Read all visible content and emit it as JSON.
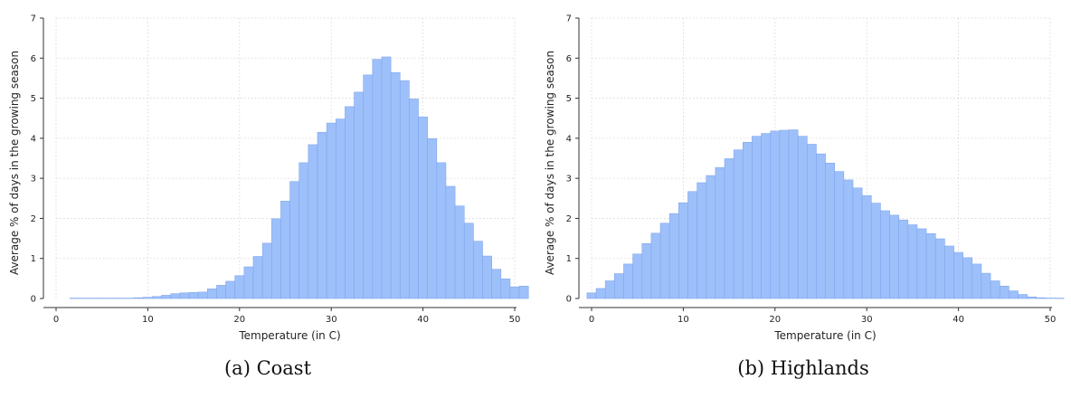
{
  "chart_data": [
    {
      "type": "bar",
      "caption": "(a) Coast",
      "xlabel": "Temperature (in C)",
      "ylabel": "Average % of days in the growing season",
      "xlim": [
        0,
        50
      ],
      "ylim": [
        0,
        7
      ],
      "x_ticks": [
        0,
        10,
        20,
        30,
        40,
        50
      ],
      "y_ticks": [
        0,
        1,
        2,
        3,
        4,
        5,
        6,
        7
      ],
      "grid": true,
      "bar_color": "#9ec0fa",
      "bar_edge_color": "#7fa6ec",
      "bin_width": 1,
      "bin_start": 1.5,
      "values": [
        0.01,
        0.01,
        0.01,
        0.01,
        0.01,
        0.01,
        0.01,
        0.02,
        0.03,
        0.05,
        0.08,
        0.12,
        0.14,
        0.15,
        0.16,
        0.24,
        0.33,
        0.43,
        0.57,
        0.79,
        1.05,
        1.38,
        1.99,
        2.43,
        2.92,
        3.39,
        3.84,
        4.15,
        4.38,
        4.48,
        4.79,
        5.15,
        5.58,
        5.97,
        6.03,
        5.64,
        5.44,
        4.98,
        4.53,
        3.99,
        3.39,
        2.8,
        2.31,
        1.88,
        1.43,
        1.06,
        0.73,
        0.49,
        0.29,
        0.31
      ]
    },
    {
      "type": "bar",
      "caption": "(b) Highlands",
      "xlabel": "Temperature (in C)",
      "ylabel": "Average % of days in the growing season",
      "xlim": [
        0,
        50
      ],
      "ylim": [
        0,
        7
      ],
      "x_ticks": [
        0,
        10,
        20,
        30,
        40,
        50
      ],
      "y_ticks": [
        0,
        1,
        2,
        3,
        4,
        5,
        6,
        7
      ],
      "grid": true,
      "bar_color": "#9ec0fa",
      "bar_edge_color": "#7fa6ec",
      "bin_width": 1,
      "bin_start": -0.5,
      "values": [
        0.14,
        0.25,
        0.44,
        0.62,
        0.86,
        1.11,
        1.37,
        1.63,
        1.88,
        2.12,
        2.39,
        2.67,
        2.89,
        3.07,
        3.27,
        3.49,
        3.71,
        3.9,
        4.05,
        4.12,
        4.18,
        4.2,
        4.21,
        4.05,
        3.85,
        3.61,
        3.38,
        3.17,
        2.96,
        2.76,
        2.57,
        2.38,
        2.19,
        2.08,
        1.96,
        1.84,
        1.74,
        1.62,
        1.49,
        1.31,
        1.15,
        1.02,
        0.86,
        0.63,
        0.44,
        0.31,
        0.19,
        0.1,
        0.04,
        0.02,
        0.01,
        0.01
      ]
    }
  ]
}
